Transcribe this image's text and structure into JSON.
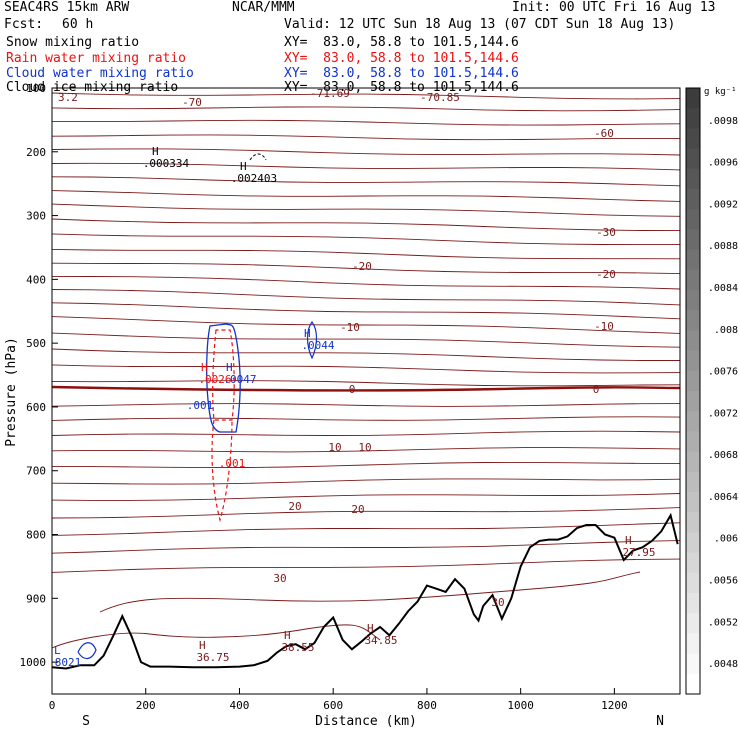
{
  "header": {
    "model": "SEAC4RS 15km ARW",
    "org": "NCAR/MMM",
    "init": "Init: 00 UTC Fri 16 Aug 13",
    "fcst_label": "Fcst:",
    "fcst_value": "60 h",
    "valid": "Valid: 12 UTC Sun 18 Aug 13 (07 CDT Sun 18 Aug 13)",
    "fields": [
      {
        "name": "Snow mixing ratio",
        "xy": "XY=  83.0, 58.8 to 101.5,144.6",
        "color": "#000000"
      },
      {
        "name": "Rain water mixing ratio",
        "xy": "XY=  83.0, 58.8 to 101.5,144.6",
        "color": "#ee1111"
      },
      {
        "name": "Cloud water mixing ratio",
        "xy": "XY=  83.0, 58.8 to 101.5,144.6",
        "color": "#1133cc"
      },
      {
        "name": "Cloud ice mixing ratio",
        "xy": "XY=  83.0, 58.8 to 101.5,144.6",
        "color": "#000000"
      }
    ]
  },
  "colors": {
    "temperature": "#7a1a1a",
    "freezing_line": "#8b1010",
    "rain": "#ee1111",
    "cloud": "#1133cc",
    "terrain": "#000000"
  },
  "chart_data": {
    "type": "line",
    "xlabel": "Distance (km)",
    "ylabel": "Pressure (hPa)",
    "xlim": [
      0,
      1340
    ],
    "ylim": [
      1050,
      100
    ],
    "x_ticks": [
      0,
      200,
      400,
      600,
      800,
      1000,
      1200
    ],
    "y_ticks": [
      100,
      200,
      300,
      400,
      500,
      600,
      700,
      800,
      900,
      1000
    ],
    "x_end_labels": {
      "left": "S",
      "right": "N"
    },
    "terrain": {
      "x": [
        0,
        30,
        60,
        90,
        110,
        130,
        150,
        170,
        190,
        210,
        250,
        300,
        350,
        400,
        430,
        460,
        480,
        500,
        520,
        540,
        560,
        580,
        600,
        620,
        640,
        660,
        680,
        700,
        720,
        740,
        760,
        780,
        800,
        820,
        840,
        860,
        880,
        900,
        910,
        920,
        940,
        960,
        980,
        1000,
        1020,
        1040,
        1060,
        1080,
        1100,
        1120,
        1140,
        1160,
        1180,
        1200,
        1220,
        1240,
        1260,
        1280,
        1300,
        1320,
        1335
      ],
      "p": [
        1008,
        1010,
        1005,
        1005,
        990,
        960,
        928,
        960,
        1000,
        1007,
        1007,
        1008,
        1008,
        1007,
        1005,
        998,
        985,
        975,
        972,
        980,
        970,
        945,
        930,
        965,
        980,
        968,
        955,
        945,
        958,
        940,
        920,
        905,
        880,
        885,
        890,
        870,
        885,
        925,
        935,
        912,
        895,
        932,
        900,
        850,
        820,
        810,
        808,
        808,
        803,
        790,
        785,
        785,
        800,
        805,
        840,
        825,
        820,
        810,
        795,
        770,
        815
      ]
    },
    "temperature_contour_labels": [
      "-70",
      "-71.69",
      "-70.85",
      "-60",
      "-30",
      "-20",
      "-20",
      "-10",
      "-10",
      "0",
      "0",
      "10",
      "10",
      "20",
      "20",
      "30",
      "30"
    ],
    "hilo_labels": [
      {
        "label": "H",
        "value": ".000334",
        "color": "black"
      },
      {
        "label": "H",
        "value": ".002403",
        "color": "black"
      },
      {
        "label": "H",
        "value": ".0044",
        "color": "blue"
      },
      {
        "label": "H",
        "value": ".0026",
        "color": "red"
      },
      {
        "label": "H",
        "value": ".0047",
        "color": "blue"
      },
      {
        "label": "",
        "value": ".001",
        "color": "blue"
      },
      {
        "label": "",
        "value": ".001",
        "color": "red"
      },
      {
        "label": "H",
        "value": "36.75",
        "color": "darkred"
      },
      {
        "label": "H",
        "value": "38.55",
        "color": "darkred"
      },
      {
        "label": "H",
        "value": "34.85",
        "color": "darkred"
      },
      {
        "label": "H",
        "value": "27.95",
        "color": "darkred"
      },
      {
        "label": "L",
        "value": "8021",
        "color": "blue"
      }
    ],
    "corner_label": "3.2",
    "colorbar": {
      "unit": "g kg⁻¹",
      "ticks": [
        ".0098",
        ".0096",
        ".0092",
        ".0088",
        ".0084",
        ".008",
        ".0076",
        ".0072",
        ".0068",
        ".0064",
        ".006",
        ".0056",
        ".0052",
        ".0048"
      ]
    }
  }
}
